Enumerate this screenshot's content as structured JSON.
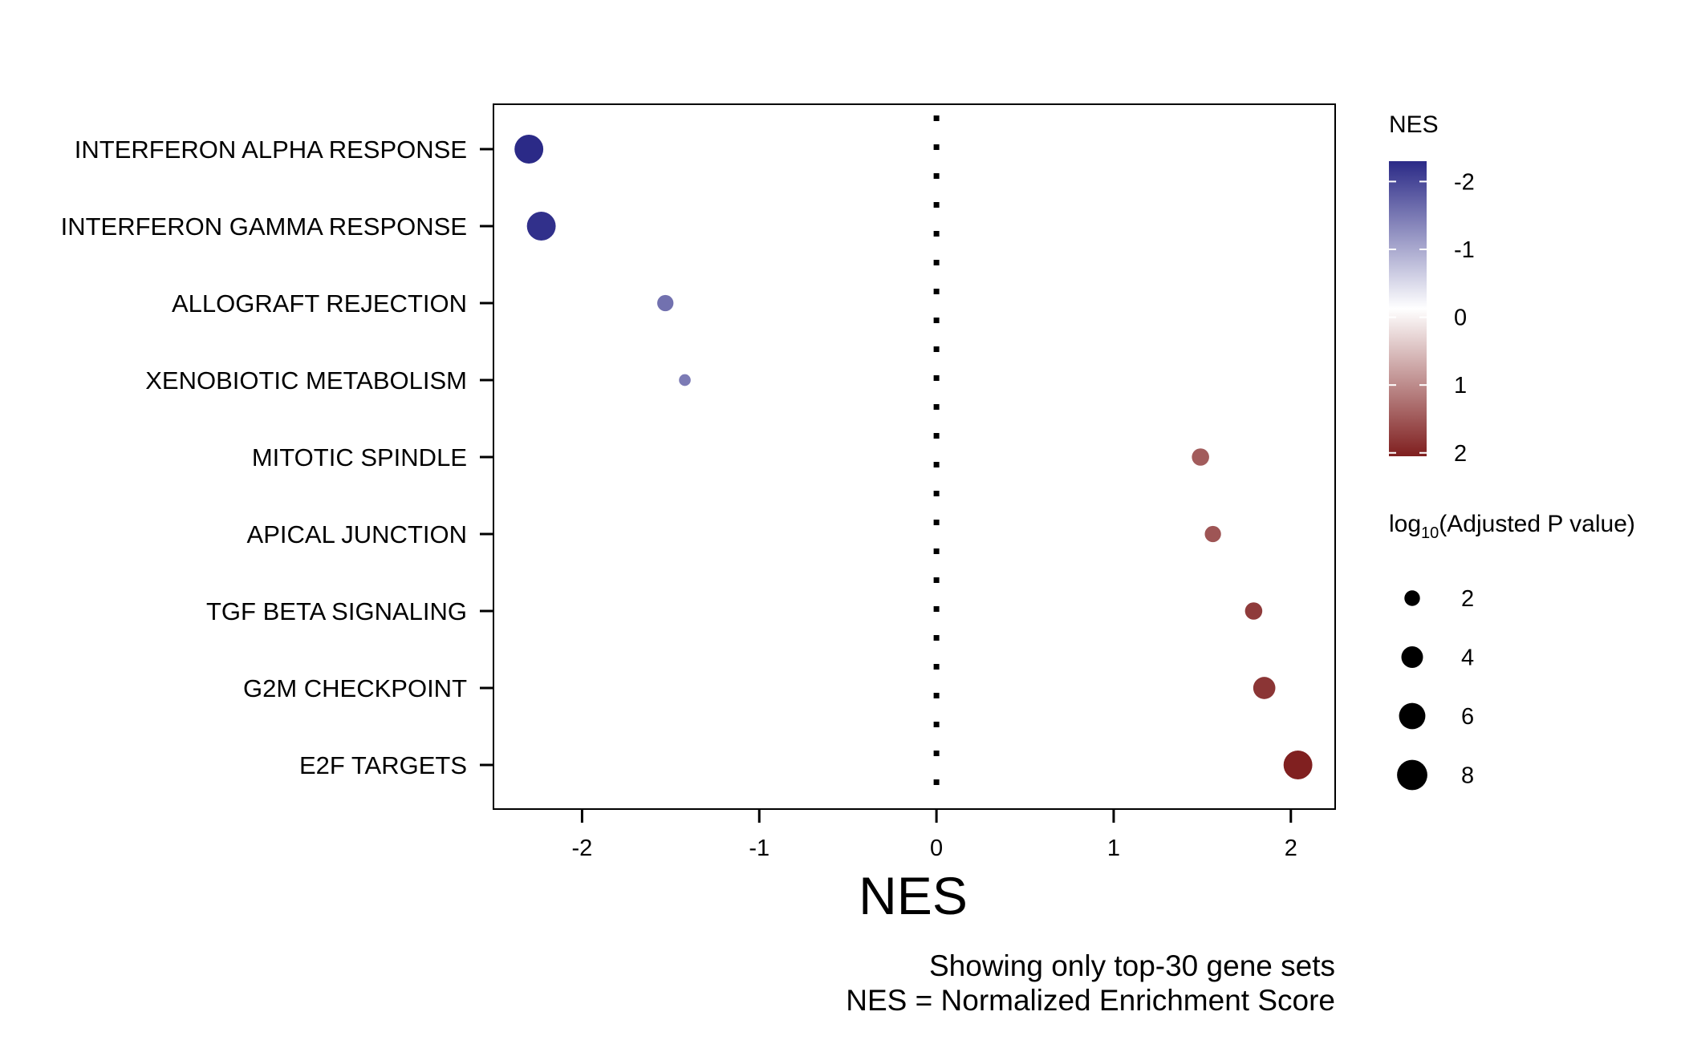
{
  "chart_data": {
    "type": "scatter",
    "xlabel": "NES",
    "categories": [
      "INTERFERON ALPHA RESPONSE",
      "INTERFERON GAMMA RESPONSE",
      "ALLOGRAFT REJECTION",
      "XENOBIOTIC METABOLISM",
      "MITOTIC SPINDLE",
      "APICAL JUNCTION",
      "TGF BETA SIGNALING",
      "G2M CHECKPOINT",
      "E2F TARGETS"
    ],
    "points": [
      {
        "category": "INTERFERON ALPHA RESPONSE",
        "nes": -2.3,
        "log_p": 7.2
      },
      {
        "category": "INTERFERON GAMMA RESPONSE",
        "nes": -2.23,
        "log_p": 7.2
      },
      {
        "category": "ALLOGRAFT REJECTION",
        "nes": -1.53,
        "log_p": 2.2
      },
      {
        "category": "XENOBIOTIC METABOLISM",
        "nes": -1.42,
        "log_p": 1.1
      },
      {
        "category": "MITOTIC SPINDLE",
        "nes": 1.49,
        "log_p": 2.5
      },
      {
        "category": "APICAL JUNCTION",
        "nes": 1.56,
        "log_p": 2.2
      },
      {
        "category": "TGF BETA SIGNALING",
        "nes": 1.79,
        "log_p": 2.5
      },
      {
        "category": "G2M CHECKPOINT",
        "nes": 1.85,
        "log_p": 4.2
      },
      {
        "category": "E2F TARGETS",
        "nes": 2.04,
        "log_p": 7.2
      }
    ],
    "xlim": [
      -2.5,
      2.25
    ],
    "x_ticks": [
      "-2",
      "-1",
      "0",
      "1",
      "2"
    ],
    "x_tick_values": [
      -2,
      -1,
      0,
      1,
      2
    ],
    "reference_line_x": 0,
    "grid": false,
    "color_legend": {
      "title": "NES",
      "labels": [
        "-2",
        "-1",
        "0",
        "1",
        "2"
      ],
      "values": [
        -2,
        -1,
        0,
        1,
        2
      ],
      "low_color": "#2b2a87",
      "mid_color": "#ffffff",
      "high_color": "#7f1f1f",
      "range": [
        -2.3,
        2.05
      ]
    },
    "size_legend": {
      "title_prefix": "log",
      "title_subscript": "10",
      "title_suffix": "(Adjusted P value)",
      "labels": [
        "2",
        "4",
        "6",
        "8"
      ],
      "values": [
        2,
        4,
        6,
        8
      ]
    },
    "caption": {
      "line1": "Showing only top-30 gene sets",
      "line2": "NES = Normalized Enrichment Score"
    }
  }
}
